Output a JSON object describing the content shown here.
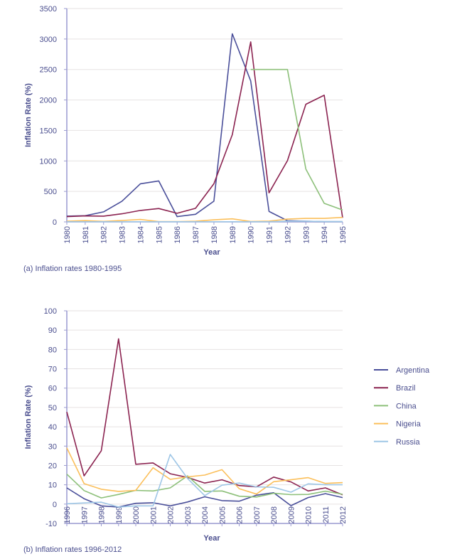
{
  "colors": {
    "Argentina": "#4a4f9a",
    "Brazil": "#8b2350",
    "China": "#8dc07a",
    "Nigeria": "#fbbf5a",
    "Russia": "#9ec6e6",
    "text": "#4a4e8e",
    "grid": "#e6e2e2",
    "axis": "#9a9ad0"
  },
  "legend": [
    "Argentina",
    "Brazil",
    "China",
    "Nigeria",
    "Russia"
  ],
  "chart_data": [
    {
      "type": "line",
      "caption": "(a) Inflation rates 1980-1995",
      "xlabel": "Year",
      "ylabel": "Inflation Rate (%)",
      "ylim": [
        0,
        3500
      ],
      "yticks": [
        0,
        500,
        1000,
        1500,
        2000,
        2500,
        3000,
        3500
      ],
      "grid": true,
      "x": [
        1980,
        1981,
        1982,
        1983,
        1984,
        1985,
        1986,
        1987,
        1988,
        1989,
        1990,
        1991,
        1992,
        1993,
        1994,
        1995
      ],
      "series": [
        {
          "name": "Argentina",
          "values": [
            94,
            102,
            164,
            340,
            625,
            672,
            86,
            125,
            340,
            3086,
            2312,
            172,
            20,
            12,
            4,
            3
          ]
        },
        {
          "name": "Brazil",
          "values": [
            86,
            98,
            94,
            133,
            188,
            219,
            141,
            223,
            625,
            1430,
            2953,
            477,
            1004,
            1930,
            2078,
            66
          ]
        },
        {
          "name": "China",
          "values": [
            null,
            null,
            null,
            null,
            null,
            null,
            null,
            null,
            null,
            null,
            2500,
            2500,
            2500,
            867,
            305,
            195
          ]
        },
        {
          "name": "Nigeria",
          "values": [
            10,
            21,
            8,
            23,
            40,
            6,
            5,
            11,
            34,
            50,
            7,
            13,
            45,
            57,
            57,
            73
          ]
        },
        {
          "name": "Russia",
          "values": [
            2,
            2,
            2,
            2,
            2,
            2,
            2,
            2,
            2,
            2,
            2,
            2,
            10,
            10,
            5,
            5
          ]
        }
      ]
    },
    {
      "type": "line",
      "caption": "(b) Inflation rates 1996-2012",
      "xlabel": "Year",
      "ylabel": "Inflation Rate (%)",
      "ylim": [
        -10,
        100
      ],
      "yticks": [
        -10,
        0,
        10,
        20,
        30,
        40,
        50,
        60,
        70,
        80,
        90,
        100
      ],
      "grid": true,
      "legend_position": "right",
      "x": [
        1996,
        1997,
        1998,
        1999,
        2000,
        2001,
        2002,
        2003,
        2004,
        2005,
        2006,
        2007,
        2008,
        2009,
        2010,
        2011,
        2012
      ],
      "series": [
        {
          "name": "Argentina",
          "values": [
            8.4,
            2.8,
            -0.9,
            -1.5,
            0.4,
            0.7,
            -0.9,
            1.1,
            3.8,
            1.8,
            1.5,
            4.6,
            5.9,
            -0.8,
            3.4,
            5.4,
            3.4
          ]
        },
        {
          "name": "Brazil",
          "values": [
            47.7,
            14.6,
            27.6,
            85.5,
            20.6,
            21.3,
            15.7,
            13.8,
            10.9,
            12.6,
            9.6,
            8.9,
            14.0,
            11.5,
            6.8,
            8.4,
            4.8
          ]
        },
        {
          "name": "China",
          "values": [
            15.5,
            7.0,
            3.2,
            5.0,
            7.1,
            6.8,
            8.4,
            14.6,
            6.6,
            6.8,
            4.1,
            3.7,
            5.6,
            4.9,
            5.0,
            6.7,
            5.1
          ]
        },
        {
          "name": "Nigeria",
          "values": [
            29.1,
            10.6,
            7.7,
            6.6,
            7.1,
            18.8,
            12.8,
            14.1,
            15.0,
            17.8,
            8.0,
            5.2,
            11.6,
            12.6,
            13.7,
            10.7,
            11.1
          ]
        },
        {
          "name": "Russia",
          "values": [
            0.2,
            0.6,
            1.0,
            -1.5,
            -0.9,
            -0.9,
            25.7,
            13.3,
            4.4,
            9.8,
            10.9,
            8.9,
            8.7,
            6.2,
            10.5,
            10.0,
            10.0
          ]
        }
      ]
    }
  ]
}
